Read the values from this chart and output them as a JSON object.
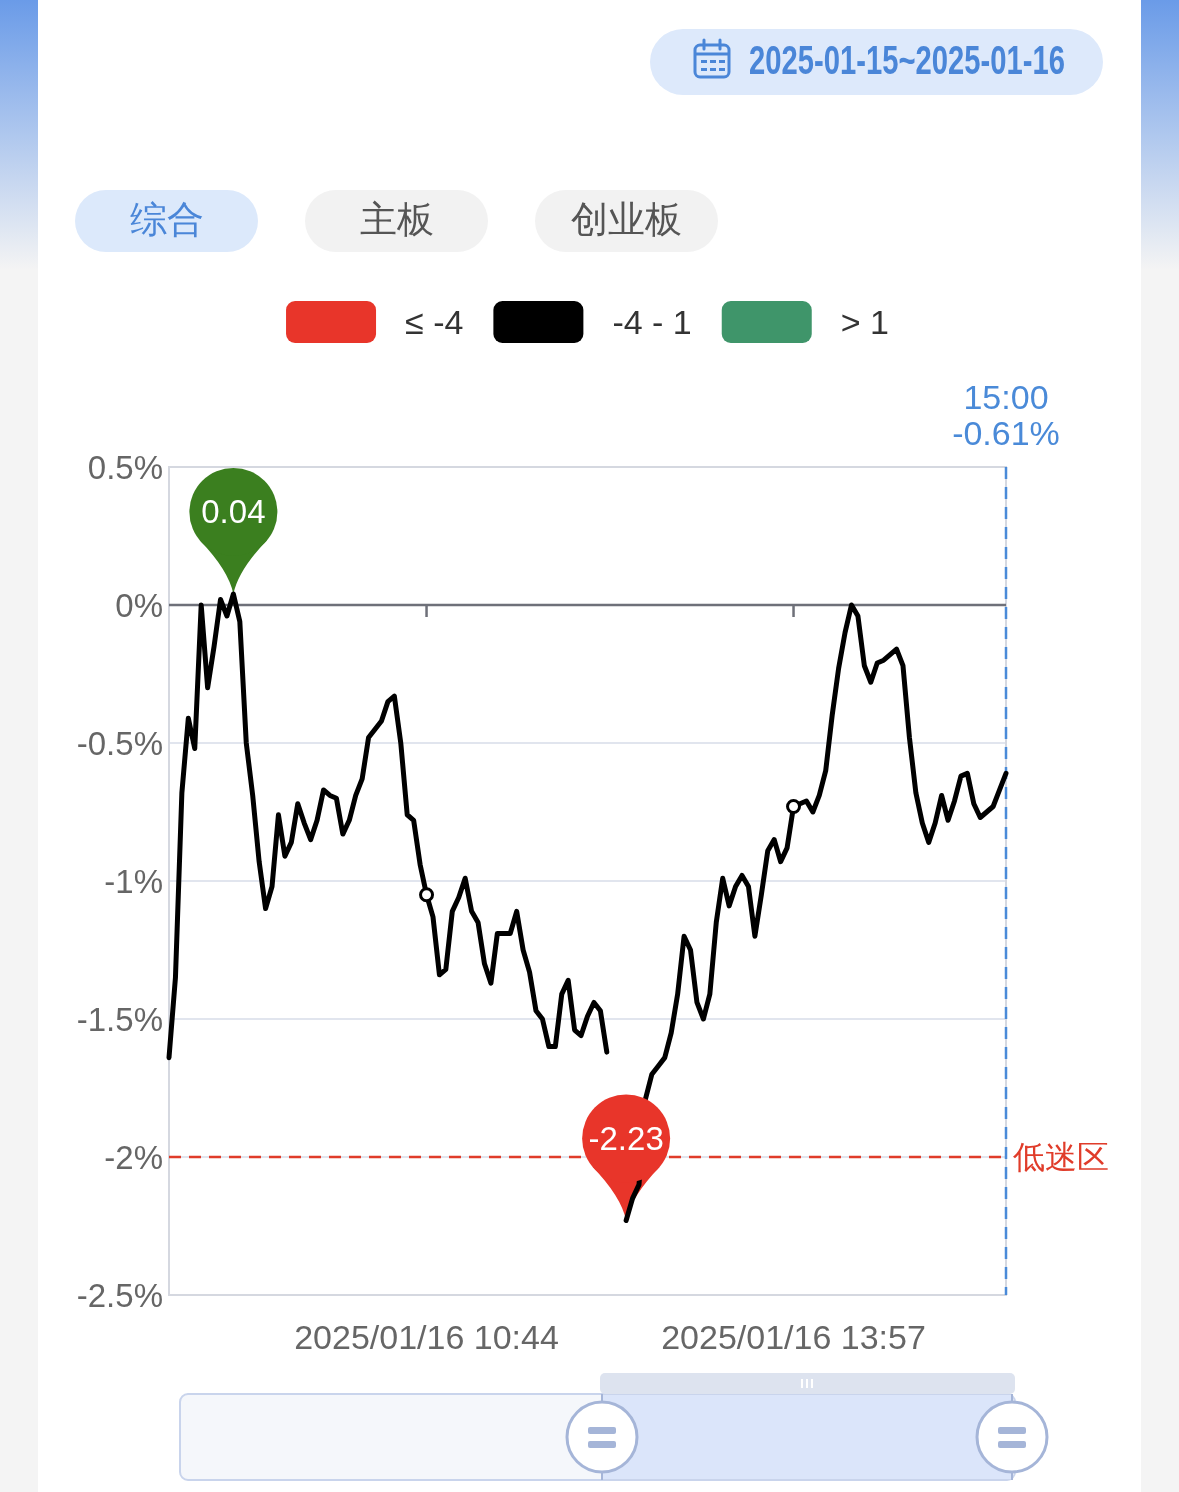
{
  "chart_data": {
    "type": "line",
    "subtitle": "2025-01-15~2025-01-16",
    "annotations": [
      "综合",
      "主板",
      "创业板",
      "15:00\n-0.61%",
      {
        "text": "0.04",
        "y": 0.04
      },
      {
        "text": "-2.23",
        "y": -2.23
      }
    ],
    "categories": [
      null,
      null,
      null,
      null,
      null,
      null,
      null,
      null,
      null,
      null,
      null,
      null,
      null,
      null,
      null,
      null,
      null,
      null,
      null,
      null,
      null,
      null,
      null,
      null,
      null,
      null,
      null,
      null,
      null,
      null,
      null,
      null,
      null,
      null,
      null,
      null,
      null,
      null,
      null,
      null,
      "2025/01/16 10:44",
      null,
      null,
      null,
      null,
      null,
      null,
      null,
      null,
      null,
      null,
      null,
      null,
      null,
      null,
      null,
      null,
      null,
      null,
      null,
      null,
      null,
      null,
      null,
      null,
      null,
      null,
      null,
      null,
      null,
      null,
      null,
      null,
      null,
      null,
      null,
      null,
      null,
      null,
      null,
      null,
      null,
      null,
      null,
      null,
      null,
      null,
      null,
      null,
      null,
      null,
      null,
      null,
      null,
      null,
      null,
      null,
      "2025/01/16 13:57",
      null,
      null,
      null,
      null,
      null,
      null,
      null,
      null,
      null,
      null,
      null,
      null,
      null,
      null,
      null,
      null,
      null,
      null,
      null,
      null,
      null,
      null,
      null,
      null,
      null,
      null,
      null,
      null,
      null,
      null,
      null,
      null,
      null
    ],
    "series": [
      {
        "name": "≤ -4",
        "color": "#e8352a",
        "values": [
          null,
          null,
          null,
          null,
          null,
          null,
          null,
          null,
          null,
          null,
          null,
          null,
          null,
          null,
          null,
          null,
          null,
          null,
          null,
          null,
          null,
          null,
          null,
          null,
          null,
          null,
          null,
          null,
          null,
          null,
          null,
          null,
          null,
          null,
          null,
          null,
          null,
          null,
          null,
          null,
          null,
          null,
          null,
          null,
          null,
          null,
          null,
          null,
          null,
          null,
          null,
          null,
          null,
          null,
          null,
          null,
          null,
          null,
          null,
          null,
          null,
          null,
          null,
          null,
          null,
          null,
          null,
          null,
          null,
          null,
          null,
          null,
          null,
          null,
          null,
          null,
          null,
          null,
          null,
          null,
          null,
          null,
          null,
          null,
          null,
          null,
          null,
          null,
          null,
          null,
          null,
          null,
          null,
          null,
          null,
          null,
          null,
          null,
          null,
          null,
          null,
          null,
          null,
          null,
          null,
          null,
          null,
          null,
          null,
          null,
          null,
          null,
          null,
          null,
          null,
          null,
          null,
          null,
          null,
          null,
          null,
          null,
          null,
          null,
          null,
          null,
          null,
          null,
          null,
          null,
          null
        ]
      },
      {
        "name": "-4 - 1",
        "color": "#000000",
        "values": [
          -1.64,
          -1.35,
          -0.68,
          -0.41,
          -0.52,
          0,
          -0.3,
          -0.15,
          0.02,
          -0.04,
          0.04,
          -0.06,
          -0.5,
          -0.69,
          -0.93,
          -1.1,
          -1.02,
          -0.76,
          -0.91,
          -0.86,
          -0.72,
          -0.79,
          -0.85,
          -0.78,
          -0.67,
          -0.69,
          -0.7,
          -0.83,
          -0.78,
          -0.69,
          -0.63,
          -0.48,
          -0.45,
          -0.42,
          -0.35,
          -0.33,
          -0.5,
          -0.76,
          -0.78,
          -0.94,
          -1.05,
          -1.13,
          -1.34,
          -1.32,
          -1.11,
          -1.06,
          -0.99,
          -1.11,
          -1.15,
          -1.3,
          -1.37,
          -1.19,
          -1.19,
          -1.19,
          -1.11,
          -1.25,
          -1.33,
          -1.47,
          -1.5,
          -1.6,
          -1.6,
          -1.41,
          -1.36,
          -1.54,
          -1.56,
          -1.49,
          -1.44,
          -1.47,
          -1.62,
          null,
          null,
          -2.23,
          -2.15,
          -2.1,
          -1.79,
          -1.7,
          -1.67,
          -1.64,
          -1.55,
          -1.41,
          -1.2,
          -1.25,
          -1.44,
          -1.5,
          -1.41,
          -1.15,
          -0.99,
          -1.09,
          -1.02,
          -0.98,
          -1.02,
          -1.2,
          -1.05,
          -0.89,
          -0.85,
          -0.93,
          -0.88,
          -0.73,
          -0.72,
          -0.71,
          -0.75,
          -0.69,
          -0.6,
          -0.4,
          -0.23,
          -0.1,
          0,
          -0.04,
          -0.22,
          -0.28,
          -0.21,
          -0.2,
          -0.18,
          -0.16,
          -0.22,
          -0.48,
          -0.68,
          -0.79,
          -0.86,
          -0.79,
          -0.69,
          -0.78,
          -0.71,
          -0.62,
          -0.61,
          -0.72,
          -0.77,
          -0.75,
          -0.73,
          -0.67,
          -0.61
        ]
      },
      {
        "name": "> 1",
        "color": "#3f956a",
        "values": [
          null,
          null,
          null,
          null,
          null,
          null,
          null,
          null,
          null,
          null,
          null,
          null,
          null,
          null,
          null,
          null,
          null,
          null,
          null,
          null,
          null,
          null,
          null,
          null,
          null,
          null,
          null,
          null,
          null,
          null,
          null,
          null,
          null,
          null,
          null,
          null,
          null,
          null,
          null,
          null,
          null,
          null,
          null,
          null,
          null,
          null,
          null,
          null,
          null,
          null,
          null,
          null,
          null,
          null,
          null,
          null,
          null,
          null,
          null,
          null,
          null,
          null,
          null,
          null,
          null,
          null,
          null,
          null,
          null,
          null,
          null,
          null,
          null,
          null,
          null,
          null,
          null,
          null,
          null,
          null,
          null,
          null,
          null,
          null,
          null,
          null,
          null,
          null,
          null,
          null,
          null,
          null,
          null,
          null,
          null,
          null,
          null,
          null,
          null,
          null,
          null,
          null,
          null,
          null,
          null,
          null,
          null,
          null,
          null,
          null,
          null,
          null,
          null,
          null,
          null,
          null,
          null,
          null,
          null,
          null,
          null,
          null,
          null,
          null,
          null,
          null,
          null,
          null,
          null,
          null,
          null
        ]
      },
      {
        "type": "scatter",
        "x": [
          "2025/01/16 10:44",
          "2025/01/16 13:57"
        ],
        "values": [
          -1.05,
          -0.73
        ],
        "color": "#000000",
        "marker": "circle"
      }
    ],
    "ylim": [
      -2.5,
      0.5
    ],
    "yticks": [
      {
        "value": -2.5,
        "label": "-2.5%"
      },
      {
        "value": -2,
        "label": "-2%"
      },
      {
        "value": -1.5,
        "label": "-1.5%"
      },
      {
        "value": -1,
        "label": "-1%"
      },
      {
        "value": -0.5,
        "label": "-0.5%"
      },
      {
        "value": 0,
        "label": "0%"
      },
      {
        "value": 0.5,
        "label": "0.5%"
      }
    ],
    "grid": "y",
    "legend": "top",
    "ref_lines": [
      {
        "axis": "y",
        "value": -2,
        "label": "低迷区",
        "color": "#e03c2a",
        "line_style": "dashed"
      }
    ]
  }
}
